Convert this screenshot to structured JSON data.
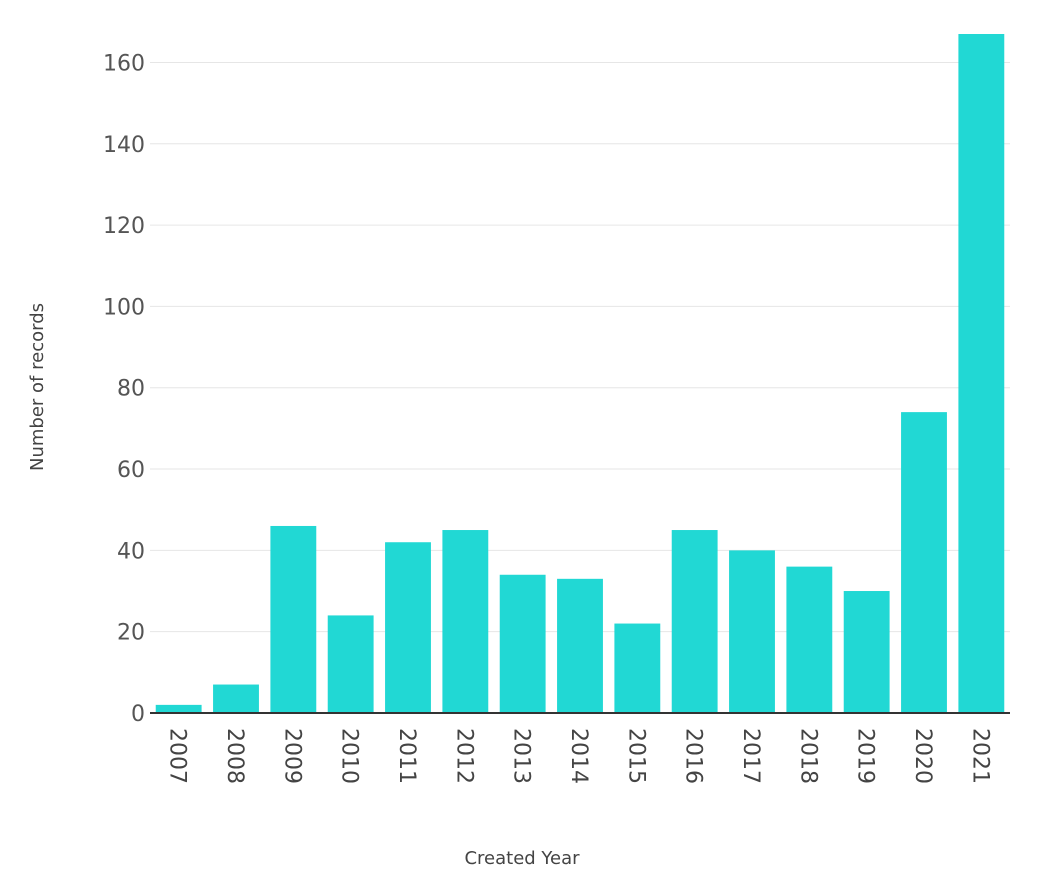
{
  "chart_data": {
    "type": "bar",
    "title": "",
    "xlabel": "Created Year",
    "ylabel": "Number of records",
    "categories": [
      "2007",
      "2008",
      "2009",
      "2010",
      "2011",
      "2012",
      "2013",
      "2014",
      "2015",
      "2016",
      "2017",
      "2018",
      "2019",
      "2020",
      "2021"
    ],
    "values": [
      2,
      7,
      46,
      24,
      42,
      45,
      34,
      33,
      22,
      45,
      40,
      36,
      30,
      74,
      167
    ],
    "ylim": [
      0,
      167
    ],
    "yticks": [
      0,
      20,
      40,
      60,
      80,
      100,
      120,
      140,
      160
    ],
    "grid": true,
    "legend": "none",
    "colors": {
      "bar": "#21d8d4"
    }
  }
}
